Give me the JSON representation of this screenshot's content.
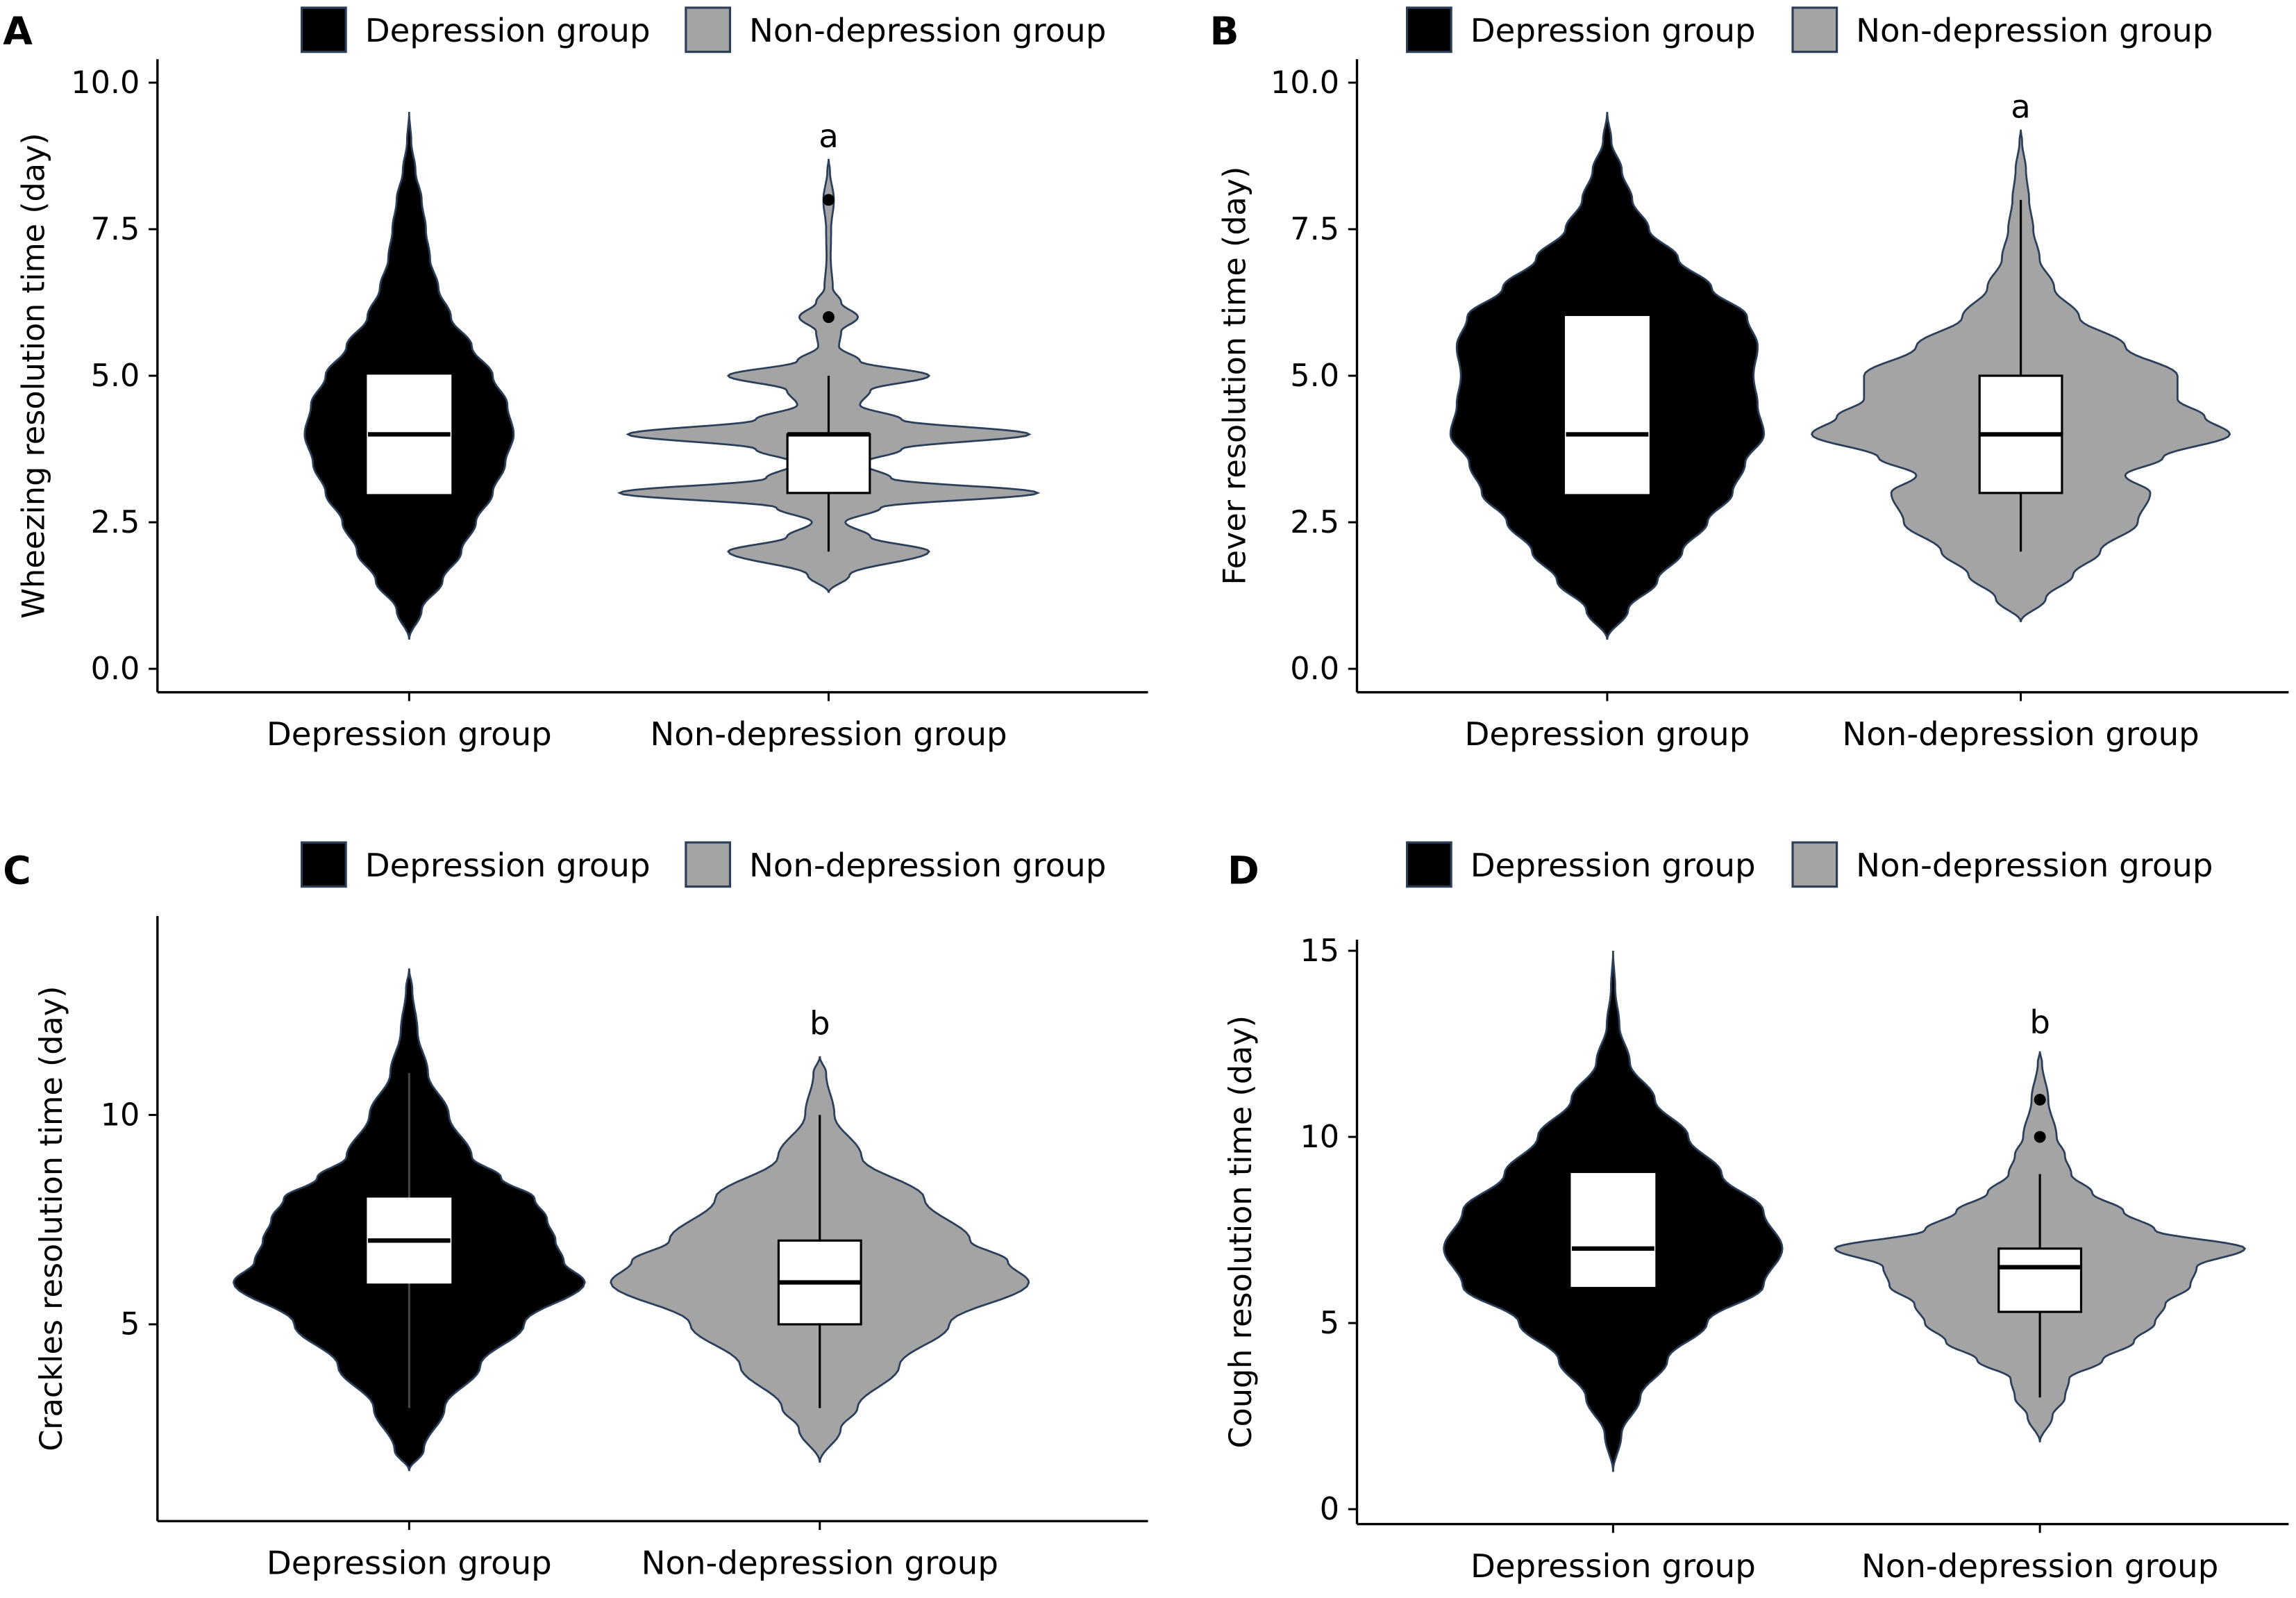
{
  "colors": {
    "depression": "#000000",
    "non_depression": "#a4a4a4",
    "outline": "#2b3f5a",
    "box": "#ffffff"
  },
  "legend": {
    "items": [
      "Depression group",
      "Non-depression group"
    ],
    "placement": "top"
  },
  "chart_data": [
    {
      "panel": "A",
      "type": "violin",
      "ylabel": "Wheezing resolution time (day)",
      "categories": [
        "Depression group",
        "Non-depression group"
      ],
      "ylim": [
        -0.4,
        10.4
      ],
      "yticks": [
        "0.0",
        "2.5",
        "5.0",
        "7.5",
        "10.0"
      ],
      "ytick_values": [
        0,
        2.5,
        5,
        7.5,
        10
      ],
      "significance": {
        "category": "Non-depression group",
        "label": "a",
        "y": 9.1
      },
      "series": [
        {
          "name": "Depression group",
          "density": [
            [
              0.5,
              0
            ],
            [
              1,
              0.06
            ],
            [
              1.5,
              0.16
            ],
            [
              2,
              0.25
            ],
            [
              2.5,
              0.32
            ],
            [
              3,
              0.4
            ],
            [
              3.5,
              0.46
            ],
            [
              4,
              0.5
            ],
            [
              4.5,
              0.47
            ],
            [
              5,
              0.4
            ],
            [
              5.5,
              0.3
            ],
            [
              6,
              0.2
            ],
            [
              6.5,
              0.14
            ],
            [
              7,
              0.1
            ],
            [
              7.5,
              0.08
            ],
            [
              8,
              0.06
            ],
            [
              8.5,
              0.03
            ],
            [
              9,
              0.01
            ],
            [
              9.5,
              0
            ]
          ],
          "box": {
            "q1": 3,
            "median": 4,
            "q3": 5,
            "whisker_low": null,
            "whisker_high": null
          },
          "outliers": []
        },
        {
          "name": "Non-depression group",
          "density": [
            [
              1.3,
              0
            ],
            [
              1.6,
              0.1
            ],
            [
              2,
              0.48
            ],
            [
              2.25,
              0.2
            ],
            [
              2.5,
              0.08
            ],
            [
              2.75,
              0.25
            ],
            [
              3,
              1.0
            ],
            [
              3.25,
              0.3
            ],
            [
              3.5,
              0.16
            ],
            [
              3.75,
              0.35
            ],
            [
              4,
              0.96
            ],
            [
              4.25,
              0.35
            ],
            [
              4.5,
              0.15
            ],
            [
              4.75,
              0.2
            ],
            [
              5,
              0.48
            ],
            [
              5.25,
              0.15
            ],
            [
              5.5,
              0.05
            ],
            [
              5.75,
              0.06
            ],
            [
              6,
              0.14
            ],
            [
              6.25,
              0.06
            ],
            [
              6.5,
              0.02
            ],
            [
              7,
              0.01
            ],
            [
              7.5,
              0.012
            ],
            [
              8,
              0.025
            ],
            [
              8.5,
              0.006
            ],
            [
              8.7,
              0
            ]
          ],
          "box": {
            "q1": 3,
            "median": 4,
            "q3": 4,
            "whisker_low": 2,
            "whisker_high": 5
          },
          "outliers": [
            6,
            8
          ]
        }
      ]
    },
    {
      "panel": "B",
      "type": "violin",
      "ylabel": "Fever resolution time (day)",
      "categories": [
        "Depression group",
        "Non-depression group"
      ],
      "ylim": [
        -0.4,
        10.4
      ],
      "yticks": [
        "0.0",
        "2.5",
        "5.0",
        "7.5",
        "10.0"
      ],
      "ytick_values": [
        0,
        2.5,
        5,
        7.5,
        10
      ],
      "significance": {
        "category": "Non-depression group",
        "label": "a",
        "y": 9.6
      },
      "series": [
        {
          "name": "Depression group",
          "density": [
            [
              0.5,
              0
            ],
            [
              1,
              0.1
            ],
            [
              1.5,
              0.24
            ],
            [
              2,
              0.36
            ],
            [
              2.5,
              0.48
            ],
            [
              3,
              0.6
            ],
            [
              3.5,
              0.66
            ],
            [
              4,
              0.75
            ],
            [
              4.5,
              0.72
            ],
            [
              5,
              0.7
            ],
            [
              5.5,
              0.72
            ],
            [
              6,
              0.67
            ],
            [
              6.5,
              0.5
            ],
            [
              7,
              0.34
            ],
            [
              7.5,
              0.2
            ],
            [
              8,
              0.12
            ],
            [
              8.5,
              0.07
            ],
            [
              9,
              0.02
            ],
            [
              9.5,
              0
            ]
          ],
          "box": {
            "q1": 3,
            "median": 4,
            "q3": 6,
            "whisker_low": null,
            "whisker_high": null
          },
          "outliers": []
        },
        {
          "name": "Non-depression group",
          "density": [
            [
              0.8,
              0
            ],
            [
              1.2,
              0.12
            ],
            [
              1.6,
              0.25
            ],
            [
              2,
              0.38
            ],
            [
              2.5,
              0.56
            ],
            [
              3,
              0.62
            ],
            [
              3.3,
              0.5
            ],
            [
              3.6,
              0.68
            ],
            [
              4,
              1.0
            ],
            [
              4.3,
              0.88
            ],
            [
              4.6,
              0.75
            ],
            [
              5,
              0.75
            ],
            [
              5.5,
              0.5
            ],
            [
              6,
              0.28
            ],
            [
              6.5,
              0.16
            ],
            [
              7,
              0.09
            ],
            [
              7.5,
              0.06
            ],
            [
              8,
              0.04
            ],
            [
              8.5,
              0.025
            ],
            [
              9,
              0.006
            ],
            [
              9.2,
              0
            ]
          ],
          "box": {
            "q1": 3,
            "median": 4,
            "q3": 5,
            "whisker_low": 2,
            "whisker_high": 8
          },
          "outliers": []
        }
      ]
    },
    {
      "panel": "C",
      "type": "violin",
      "ylabel": "Crackles resolution time (day)",
      "categories": [
        "Depression group",
        "Non-depression group"
      ],
      "ylim": [
        0.3,
        14.75
      ],
      "yticks": [
        "5",
        "10"
      ],
      "ytick_values": [
        5,
        10
      ],
      "significance": {
        "category": "Non-depression group",
        "label": "b",
        "y": 12.2
      },
      "series": [
        {
          "name": "Depression group",
          "density": [
            [
              1.5,
              0
            ],
            [
              2,
              0.07
            ],
            [
              3,
              0.17
            ],
            [
              4,
              0.34
            ],
            [
              5,
              0.55
            ],
            [
              6,
              0.84
            ],
            [
              6.5,
              0.74
            ],
            [
              7,
              0.7
            ],
            [
              7.5,
              0.66
            ],
            [
              8,
              0.6
            ],
            [
              8.5,
              0.44
            ],
            [
              9,
              0.3
            ],
            [
              10,
              0.19
            ],
            [
              11,
              0.09
            ],
            [
              12,
              0.04
            ],
            [
              13,
              0.015
            ],
            [
              13.5,
              0
            ]
          ],
          "box": {
            "q1": 6,
            "median": 7,
            "q3": 8,
            "whisker_low": 3,
            "whisker_high": 11
          },
          "outliers": []
        },
        {
          "name": "Non-depression group",
          "density": [
            [
              1.7,
              0
            ],
            [
              2.5,
              0.1
            ],
            [
              3,
              0.18
            ],
            [
              4,
              0.38
            ],
            [
              5,
              0.62
            ],
            [
              6,
              1.0
            ],
            [
              6.5,
              0.9
            ],
            [
              7,
              0.72
            ],
            [
              8,
              0.5
            ],
            [
              9,
              0.2
            ],
            [
              10,
              0.07
            ],
            [
              11,
              0.03
            ],
            [
              11.4,
              0
            ]
          ],
          "box": {
            "q1": 5,
            "median": 6,
            "q3": 7,
            "whisker_low": 3,
            "whisker_high": 10
          },
          "outliers": []
        }
      ]
    },
    {
      "panel": "D",
      "type": "violin",
      "ylabel": "Cough resolution time (day)",
      "categories": [
        "Depression group",
        "Non-depression group"
      ],
      "ylim": [
        -0.4,
        15.3
      ],
      "yticks": [
        "0",
        "5",
        "10",
        "15"
      ],
      "ytick_values": [
        0,
        5,
        10,
        15
      ],
      "significance": {
        "category": "Non-depression group",
        "label": "b",
        "y": 13.1
      },
      "series": [
        {
          "name": "Depression group",
          "density": [
            [
              1,
              0
            ],
            [
              2,
              0.04
            ],
            [
              3,
              0.13
            ],
            [
              4,
              0.26
            ],
            [
              5,
              0.45
            ],
            [
              6,
              0.72
            ],
            [
              7,
              0.81
            ],
            [
              8,
              0.72
            ],
            [
              9,
              0.52
            ],
            [
              10,
              0.36
            ],
            [
              11,
              0.2
            ],
            [
              12,
              0.08
            ],
            [
              13,
              0.03
            ],
            [
              14,
              0.01
            ],
            [
              15,
              0
            ]
          ],
          "box": {
            "q1": 6,
            "median": 7,
            "q3": 9,
            "whisker_low": null,
            "whisker_high": null
          },
          "outliers": []
        },
        {
          "name": "Non-depression group",
          "density": [
            [
              1.8,
              0
            ],
            [
              2.5,
              0.06
            ],
            [
              3,
              0.12
            ],
            [
              3.5,
              0.14
            ],
            [
              4,
              0.3
            ],
            [
              4.5,
              0.45
            ],
            [
              5,
              0.55
            ],
            [
              5.5,
              0.6
            ],
            [
              6,
              0.72
            ],
            [
              6.5,
              0.75
            ],
            [
              7,
              0.98
            ],
            [
              7.5,
              0.55
            ],
            [
              8,
              0.4
            ],
            [
              8.5,
              0.25
            ],
            [
              9,
              0.15
            ],
            [
              9.5,
              0.12
            ],
            [
              10,
              0.08
            ],
            [
              11,
              0.04
            ],
            [
              12,
              0.01
            ],
            [
              12.3,
              0
            ]
          ],
          "box": {
            "q1": 5.3,
            "median": 6.5,
            "q3": 7,
            "whisker_low": 3,
            "whisker_high": 9
          },
          "outliers": [
            10,
            11
          ]
        }
      ]
    }
  ]
}
